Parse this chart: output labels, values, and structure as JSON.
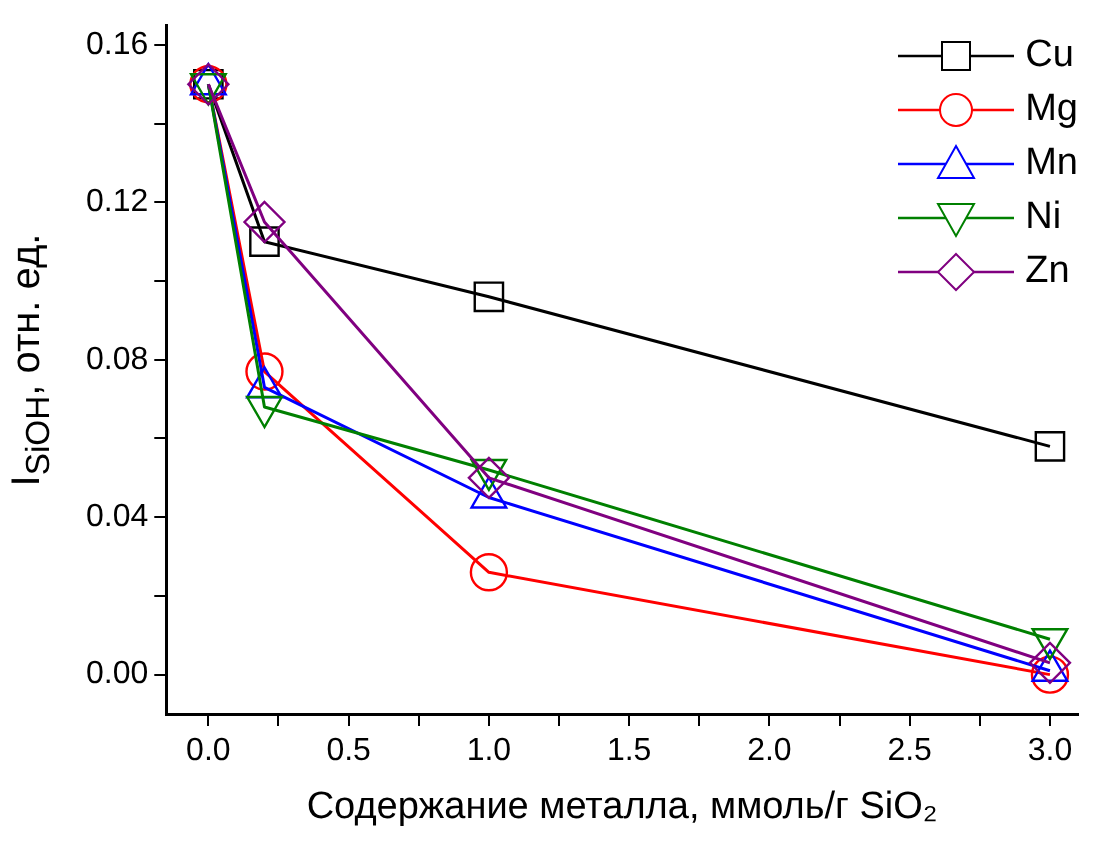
{
  "chart_data": {
    "type": "line",
    "xlabel": "Содержание металла, ммоль/г SiO₂",
    "ylabel": "I$_{SiOH}$, отн. ед.",
    "x": [
      0.0,
      0.2,
      1.0,
      3.0
    ],
    "series": [
      {
        "name": "Cu",
        "color": "#000000",
        "marker": "square",
        "values": [
          0.15,
          0.11,
          0.096,
          0.058
        ]
      },
      {
        "name": "Mg",
        "color": "#ff0000",
        "marker": "circle",
        "values": [
          0.15,
          0.077,
          0.026,
          0.0
        ]
      },
      {
        "name": "Mn",
        "color": "#0000ff",
        "marker": "triangle",
        "values": [
          0.15,
          0.073,
          0.045,
          0.001
        ]
      },
      {
        "name": "Ni",
        "color": "#008000",
        "marker": "triangle-down",
        "values": [
          0.15,
          0.068,
          0.052,
          0.009
        ]
      },
      {
        "name": "Zn",
        "color": "#800080",
        "marker": "diamond",
        "values": [
          0.15,
          0.115,
          0.05,
          0.003
        ]
      }
    ],
    "xlim": [
      -0.15,
      3.1
    ],
    "xticks": [
      {
        "value": 0,
        "label": "0.0"
      },
      {
        "value": 0.25,
        "label": null
      },
      {
        "value": 0.5,
        "label": "0.5"
      },
      {
        "value": 0.75,
        "label": null
      },
      {
        "value": 1,
        "label": "1.0"
      },
      {
        "value": 1.25,
        "label": null
      },
      {
        "value": 1.5,
        "label": "1.5"
      },
      {
        "value": 1.75,
        "label": null
      },
      {
        "value": 2,
        "label": "2.0"
      },
      {
        "value": 2.25,
        "label": null
      },
      {
        "value": 2.5,
        "label": "2.5"
      },
      {
        "value": 2.75,
        "label": null
      },
      {
        "value": 3,
        "label": "3.0"
      }
    ],
    "ylim": [
      -0.01,
      0.165
    ],
    "yticks": [
      {
        "value": 0,
        "label": "0.00"
      },
      {
        "value": 0.02,
        "label": null
      },
      {
        "value": 0.04,
        "label": "0.04"
      },
      {
        "value": 0.06,
        "label": null
      },
      {
        "value": 0.08,
        "label": "0.08"
      },
      {
        "value": 0.1,
        "label": null
      },
      {
        "value": 0.12,
        "label": "0.12"
      },
      {
        "value": 0.14,
        "label": null
      },
      {
        "value": 0.16,
        "label": "0.16"
      }
    ],
    "grid": false,
    "legend": "top right",
    "line_style": "solid"
  }
}
